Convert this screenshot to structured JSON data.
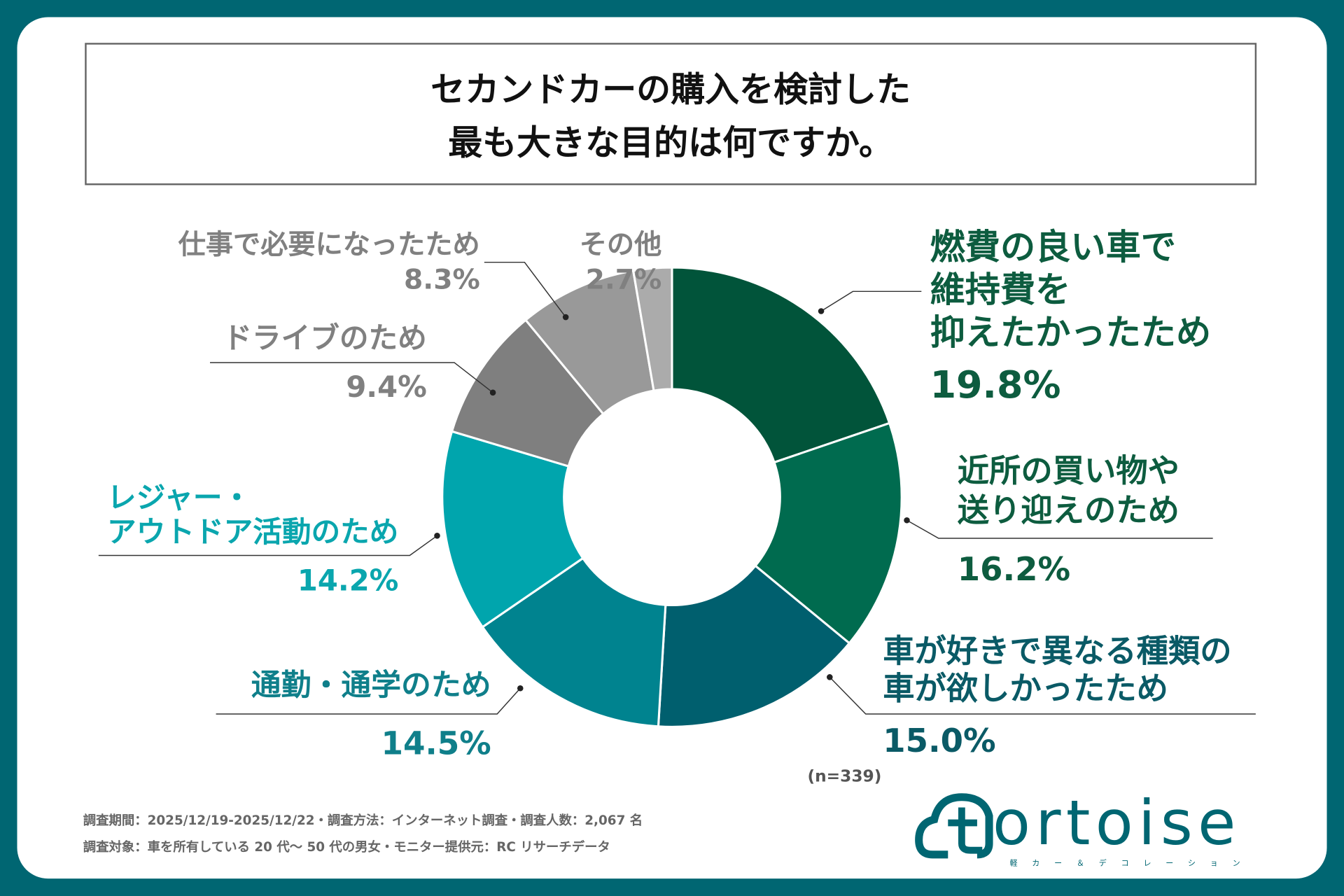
{
  "title_lines": [
    "セカンドカーの購入を検討した",
    "最も大きな目的は何ですか。"
  ],
  "chart_data": {
    "type": "pie",
    "donut": true,
    "title": "セカンドカーの購入を検討した最も大きな目的は何ですか。",
    "start": "top",
    "direction": "clockwise",
    "categories": [
      "燃費の良い車で維持費を抑えたかったため",
      "近所の買い物や送り迎えのため",
      "車が好きで異なる種類の車が欲しかったため",
      "通勤・通学のため",
      "レジャー・アウトドア活動のため",
      "ドライブのため",
      "仕事で必要になったため",
      "その他"
    ],
    "values": [
      19.8,
      16.2,
      15.0,
      14.5,
      14.2,
      9.4,
      8.3,
      2.7
    ],
    "colors": [
      "#01543a",
      "#006b4f",
      "#005f6e",
      "#00838f",
      "#00a5ad",
      "#7f7f7f",
      "#999999",
      "#ababab"
    ],
    "label_colors": [
      "#0d5c3f",
      "#0d5c3f",
      "#0a5a66",
      "#0f7f8a",
      "#0aa6ae",
      "#808080",
      "#808080",
      "#808080"
    ],
    "label_lines": [
      [
        "燃費の良い車で",
        "維持費を",
        "抑えたかったため"
      ],
      [
        "近所の買い物や",
        "送り迎えのため"
      ],
      [
        "車が好きで異なる種類の",
        "車が欲しかったため"
      ],
      [
        "通勤・通学のため"
      ],
      [
        "レジャー・",
        "アウトドア活動のため"
      ],
      [
        "ドライブのため"
      ],
      [
        "仕事で必要になったため"
      ],
      [
        "その他"
      ]
    ],
    "value_labels": [
      "19.8%",
      "16.2%",
      "15.0%",
      "14.5%",
      "14.2%",
      "9.4%",
      "8.3%",
      "2.7%"
    ],
    "sample_size": "(n=339)"
  },
  "footer": {
    "line1": "調査期間：2025/12/19-2025/12/22・調査方法：インターネット調査・調査人数：2,067 名",
    "line2": "調査対象：車を所有している 20 代～ 50 代の男女・モニター提供元：RC リサーチデータ"
  },
  "logo": {
    "text": "tortoise",
    "subtitle": "軽カー＆デコレーション",
    "color": "#006672"
  },
  "colors": {
    "background": "#006672",
    "card": "#ffffff"
  }
}
